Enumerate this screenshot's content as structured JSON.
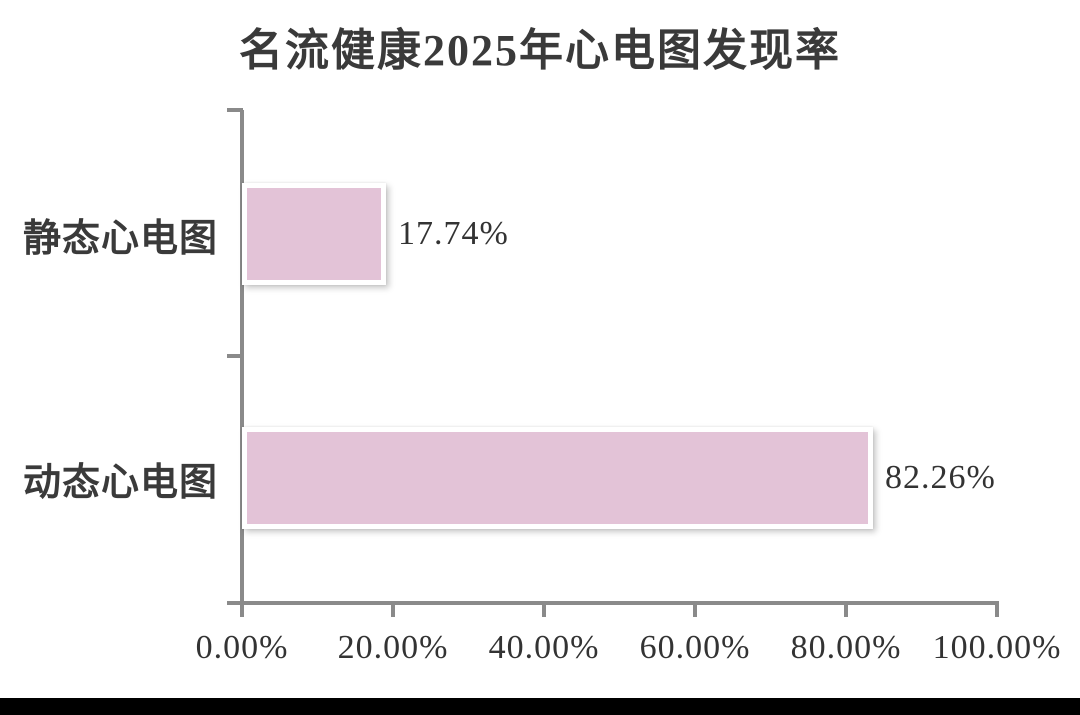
{
  "chart_data": {
    "type": "bar",
    "orientation": "horizontal",
    "title": "名流健康2025年心电图发现率",
    "categories": [
      "静态心电图",
      "动态心电图"
    ],
    "values": [
      17.74,
      82.26
    ],
    "value_labels": [
      "17.74%",
      "82.26%"
    ],
    "xlabel": "",
    "ylabel": "",
    "xlim": [
      0,
      100
    ],
    "xticks": [
      0,
      20,
      40,
      60,
      80,
      100
    ],
    "xtick_labels": [
      "0.00%",
      "20.00%",
      "40.00%",
      "60.00%",
      "80.00%",
      "100.00%"
    ],
    "grid": false,
    "legend": "none",
    "colors": {
      "bar_fill": "#e3c3d7",
      "bar_border": "#ffffff",
      "axis": "#8a8a8a",
      "title_text": "#3a3a3a",
      "label_text": "#333333",
      "bottom_strip": "#000000",
      "background": "#ffffff"
    }
  }
}
